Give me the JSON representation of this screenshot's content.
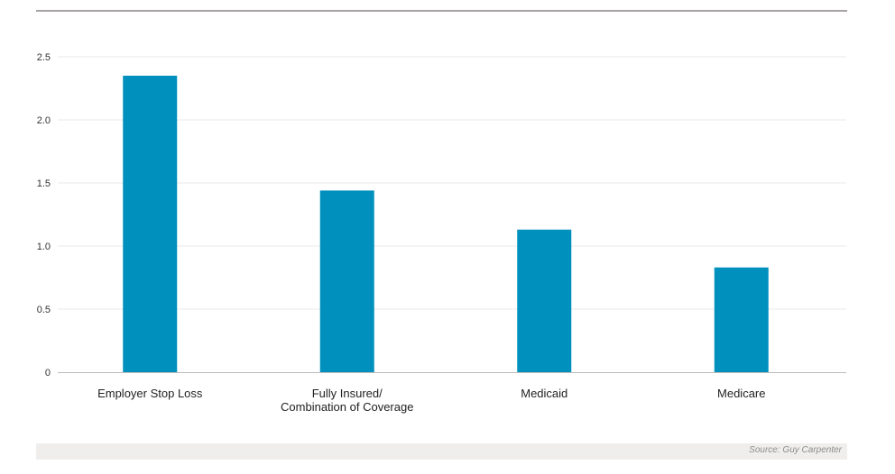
{
  "chart_data": {
    "type": "bar",
    "categories": [
      [
        "Employer Stop Loss"
      ],
      [
        "Fully Insured/",
        "Combination of Coverage"
      ],
      [
        "Medicaid"
      ],
      [
        "Medicare"
      ]
    ],
    "values": [
      2.35,
      1.44,
      1.13,
      0.83
    ],
    "ylim": [
      0,
      2.5
    ],
    "yticks": [
      "0",
      "0.5",
      "1.0",
      "1.5",
      "2.0",
      "2.5"
    ],
    "grid": true,
    "bar_color": "#0090bd",
    "grid_color": "#e9e9e9",
    "axis_color": "#bcbcbc"
  },
  "footer": {
    "source": "Source: Guy Carpenter"
  }
}
